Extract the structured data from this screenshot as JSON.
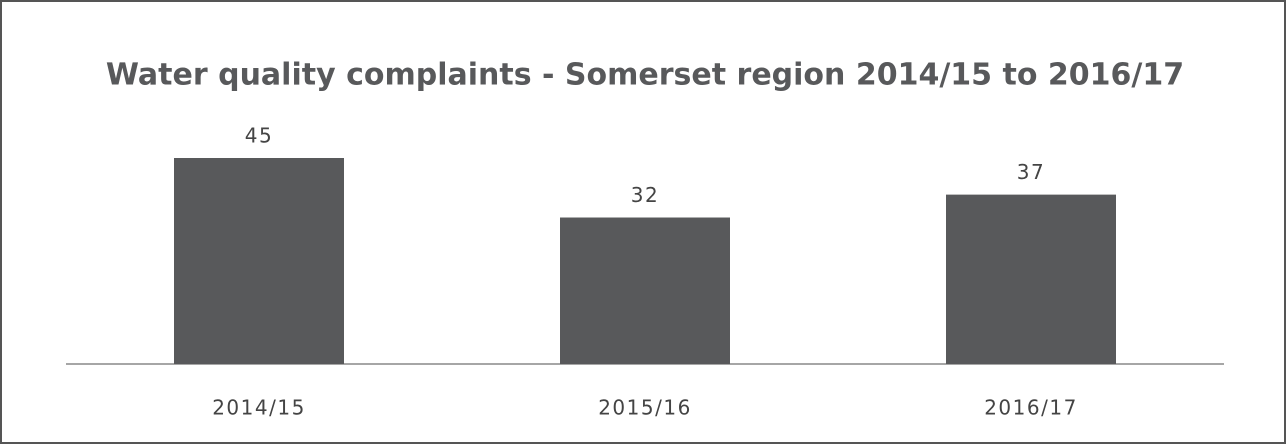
{
  "chart_data": {
    "type": "bar",
    "title": "Water quality complaints - Somerset region 2014/15 to 2016/17",
    "categories": [
      "2014/15",
      "2015/16",
      "2016/17"
    ],
    "values": [
      45,
      32,
      37
    ],
    "color": "#58595b"
  }
}
